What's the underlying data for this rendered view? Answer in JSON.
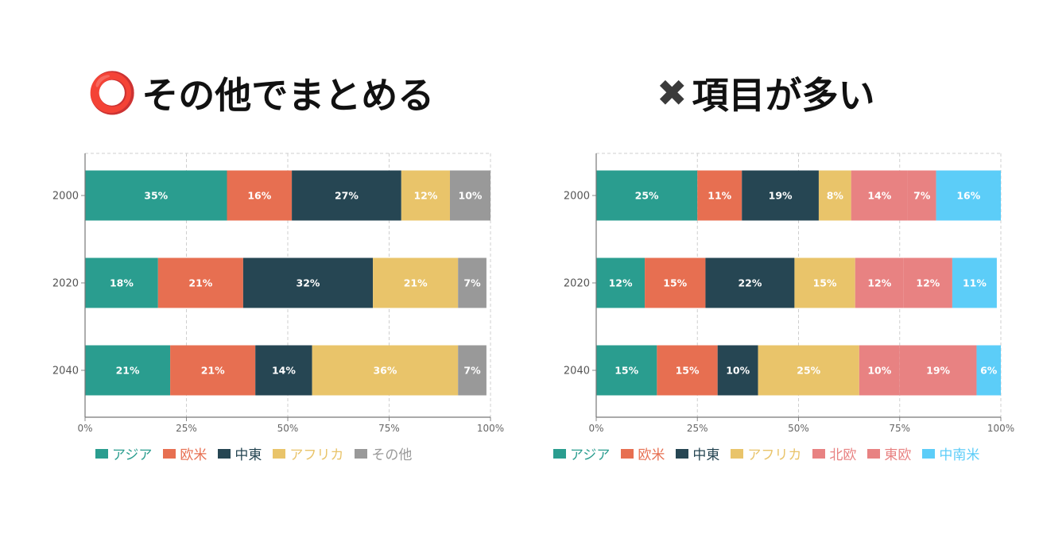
{
  "panels": [
    {
      "heading_mark": "⭕",
      "heading_text": "その他でまとめる"
    },
    {
      "heading_mark": "✖",
      "heading_text": "項目が多い"
    }
  ],
  "chart_data": [
    {
      "type": "bar",
      "orientation": "horizontal",
      "stacked": true,
      "categories": [
        "2000",
        "2020",
        "2040"
      ],
      "series": [
        {
          "name": "アジア",
          "color": "#2a9d8f",
          "values": [
            35,
            18,
            21
          ]
        },
        {
          "name": "欧米",
          "color": "#e76f51",
          "values": [
            16,
            21,
            21
          ]
        },
        {
          "name": "中東",
          "color": "#264653",
          "values": [
            27,
            32,
            14
          ]
        },
        {
          "name": "アフリカ",
          "color": "#e9c46a",
          "values": [
            12,
            21,
            36
          ]
        },
        {
          "name": "その他",
          "color": "#999999",
          "values": [
            10,
            7,
            7
          ]
        }
      ],
      "xlim": [
        0,
        100
      ],
      "xticks": [
        "0%",
        "25%",
        "50%",
        "75%",
        "100%"
      ],
      "grid": true,
      "legend": "bottom"
    },
    {
      "type": "bar",
      "orientation": "horizontal",
      "stacked": true,
      "categories": [
        "2000",
        "2020",
        "2040"
      ],
      "series": [
        {
          "name": "アジア",
          "color": "#2a9d8f",
          "values": [
            25,
            12,
            15
          ]
        },
        {
          "name": "欧米",
          "color": "#e76f51",
          "values": [
            11,
            15,
            15
          ]
        },
        {
          "name": "中東",
          "color": "#264653",
          "values": [
            19,
            22,
            10
          ]
        },
        {
          "name": "アフリカ",
          "color": "#e9c46a",
          "values": [
            8,
            15,
            25
          ]
        },
        {
          "name": "北欧",
          "color": "#e88282",
          "values": [
            14,
            12,
            10
          ]
        },
        {
          "name": "東欧",
          "color": "#e88282",
          "values": [
            7,
            12,
            19
          ]
        },
        {
          "name": "中南米",
          "color": "#5ccdf8",
          "values": [
            16,
            11,
            6
          ]
        }
      ],
      "xlim": [
        0,
        100
      ],
      "xticks": [
        "0%",
        "25%",
        "50%",
        "75%",
        "100%"
      ],
      "grid": true,
      "legend": "bottom"
    }
  ]
}
